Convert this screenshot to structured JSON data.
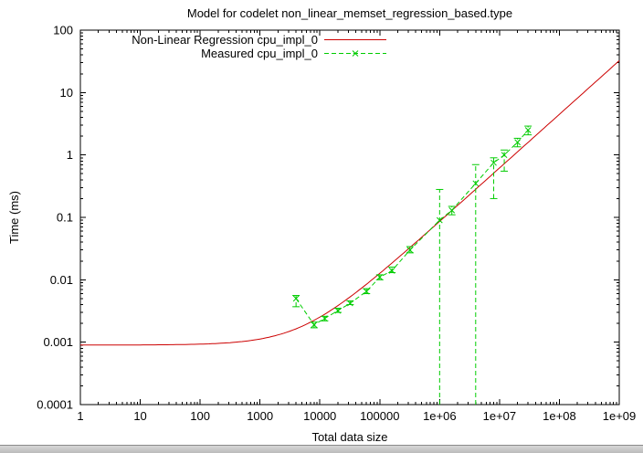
{
  "window": {
    "background": "#ffffff",
    "statusbar_color": "#b8b8b8"
  },
  "chart_data": {
    "type": "line",
    "title": "Model for codelet non_linear_memset_regression_based.type",
    "xlabel": "Total data size",
    "ylabel": "Time (ms)",
    "x_scale": "log",
    "y_scale": "log",
    "xlim": [
      1,
      1000000000
    ],
    "ylim": [
      0.0001,
      100
    ],
    "grid": false,
    "legend_position": "top-center-inside",
    "x_ticks": [
      {
        "v": 1,
        "label": "1"
      },
      {
        "v": 10,
        "label": "10"
      },
      {
        "v": 100,
        "label": "100"
      },
      {
        "v": 1000,
        "label": "1000"
      },
      {
        "v": 10000,
        "label": "10000"
      },
      {
        "v": 100000,
        "label": "100000"
      },
      {
        "v": 1000000,
        "label": "1e+06"
      },
      {
        "v": 10000000,
        "label": "1e+07"
      },
      {
        "v": 100000000,
        "label": "1e+08"
      },
      {
        "v": 1000000000,
        "label": "1e+09"
      }
    ],
    "y_ticks": [
      {
        "v": 0.0001,
        "label": "0.0001"
      },
      {
        "v": 0.001,
        "label": "0.001"
      },
      {
        "v": 0.01,
        "label": "0.01"
      },
      {
        "v": 0.1,
        "label": "0.1"
      },
      {
        "v": 1,
        "label": "1"
      },
      {
        "v": 10,
        "label": "10"
      },
      {
        "v": 100,
        "label": "100"
      }
    ],
    "series": [
      {
        "name": "Non-Linear Regression cpu_impl_0",
        "color": "#cc0000",
        "style": "solid-line",
        "model": {
          "a": 0.0009,
          "b": 5.9e-07,
          "c": 0.86
        }
      },
      {
        "name": "Measured cpu_impl_0",
        "color": "#00cc00",
        "style": "dashed-line-x-markers-errorbars",
        "points": [
          {
            "x": 4000,
            "y": 0.005,
            "ylow": 0.0037,
            "yhigh": 0.0056
          },
          {
            "x": 8000,
            "y": 0.0019,
            "ylow": 0.0017,
            "yhigh": 0.0021
          },
          {
            "x": 12000,
            "y": 0.0024,
            "ylow": 0.0022,
            "yhigh": 0.0026
          },
          {
            "x": 20000,
            "y": 0.0032,
            "ylow": 0.003,
            "yhigh": 0.0035
          },
          {
            "x": 32000,
            "y": 0.0042,
            "ylow": 0.004,
            "yhigh": 0.0046
          },
          {
            "x": 60000,
            "y": 0.0065,
            "ylow": 0.006,
            "yhigh": 0.0072
          },
          {
            "x": 100000,
            "y": 0.011,
            "ylow": 0.01,
            "yhigh": 0.012
          },
          {
            "x": 160000,
            "y": 0.014,
            "ylow": 0.013,
            "yhigh": 0.016
          },
          {
            "x": 320000,
            "y": 0.03,
            "ylow": 0.027,
            "yhigh": 0.034
          },
          {
            "x": 1000000,
            "y": 0.09,
            "ylow": 0.0001,
            "yhigh": 0.28
          },
          {
            "x": 1600000,
            "y": 0.13,
            "ylow": 0.11,
            "yhigh": 0.15
          },
          {
            "x": 4000000,
            "y": 0.35,
            "ylow": 0.0001,
            "yhigh": 0.7
          },
          {
            "x": 8000000,
            "y": 0.75,
            "ylow": 0.2,
            "yhigh": 0.9
          },
          {
            "x": 12000000,
            "y": 1.0,
            "ylow": 0.55,
            "yhigh": 1.2
          },
          {
            "x": 20000000,
            "y": 1.6,
            "ylow": 1.35,
            "yhigh": 1.85
          },
          {
            "x": 30000000,
            "y": 2.5,
            "ylow": 2.1,
            "yhigh": 2.9
          }
        ]
      }
    ]
  }
}
